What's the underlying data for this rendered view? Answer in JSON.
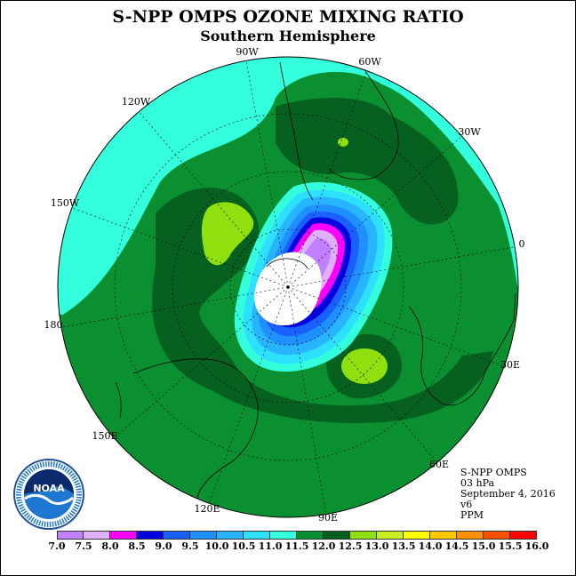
{
  "header": {
    "title": "S-NPP OMPS OZONE MIXING RATIO",
    "subtitle": "Southern Hemisphere"
  },
  "map": {
    "projection": "south polar stereographic",
    "longitude_labels": [
      "90W",
      "60W",
      "30W",
      "0",
      "30E",
      "60E",
      "90E",
      "120E",
      "150E",
      "180",
      "150W",
      "120W"
    ],
    "fill_color_outside": "#33ffdd",
    "pole_value": "missing (white)"
  },
  "info": {
    "instrument": "S-NPP OMPS",
    "level": "03 hPa",
    "date": "September 4, 2016",
    "version": "v6",
    "units": "PPM"
  },
  "legend": {
    "labels": [
      "7.0",
      "7.5",
      "8.0",
      "8.5",
      "9.0",
      "9.5",
      "10.0",
      "10.5",
      "11.0",
      "11.5",
      "12.0",
      "12.5",
      "13.0",
      "13.5",
      "14.0",
      "14.5",
      "15.0",
      "15.5",
      "16.0"
    ],
    "colors": [
      "#c080ff",
      "#e0b0ff",
      "#ff00ff",
      "#0000e0",
      "#1a60ff",
      "#1e90ff",
      "#28b4ff",
      "#2de0ff",
      "#33ffdd",
      "#0a9030",
      "#066020",
      "#90e010",
      "#c8f020",
      "#ffff00",
      "#ffc800",
      "#ff9000",
      "#ff5000",
      "#ff0000",
      "#8b5030"
    ]
  },
  "logo": {
    "name": "NOAA",
    "text": "NOAA"
  }
}
